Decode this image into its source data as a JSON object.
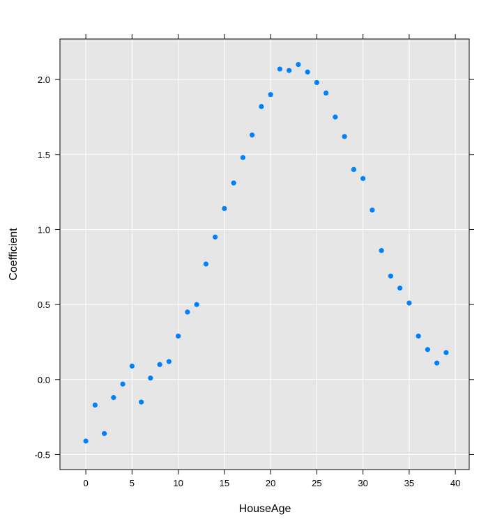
{
  "chart_data": {
    "type": "scatter",
    "xlabel": "HouseAge",
    "ylabel": "Coefficient",
    "xlim": [
      -2.8,
      41.5
    ],
    "ylim": [
      -0.6,
      2.27
    ],
    "x_ticks": [
      0,
      5,
      10,
      15,
      20,
      25,
      30,
      35,
      40
    ],
    "y_ticks": [
      -0.5,
      0.0,
      0.5,
      1.0,
      1.5,
      2.0
    ],
    "x_tick_labels": [
      "0",
      "5",
      "10",
      "15",
      "20",
      "25",
      "30",
      "35",
      "40"
    ],
    "y_tick_labels": [
      "-0.5",
      "0.0",
      "0.5",
      "1.0",
      "1.5",
      "2.0"
    ],
    "grid": true,
    "x": [
      0,
      1,
      2,
      3,
      4,
      5,
      6,
      7,
      8,
      9,
      10,
      11,
      12,
      13,
      14,
      15,
      16,
      17,
      18,
      19,
      20,
      21,
      22,
      23,
      24,
      25,
      26,
      27,
      28,
      29,
      30,
      31,
      32,
      33,
      34,
      35,
      36,
      37,
      38,
      39
    ],
    "y": [
      -0.41,
      -0.17,
      -0.36,
      -0.12,
      -0.03,
      0.09,
      -0.15,
      0.01,
      0.1,
      0.12,
      0.29,
      0.45,
      0.5,
      0.77,
      0.95,
      1.14,
      1.31,
      1.48,
      1.63,
      1.82,
      1.9,
      2.07,
      2.06,
      2.1,
      2.05,
      1.98,
      1.91,
      1.75,
      1.62,
      1.4,
      1.34,
      1.13,
      0.86,
      0.69,
      0.61,
      0.51,
      0.29,
      0.2,
      0.11,
      0.18
    ]
  },
  "colors": {
    "panel_background": "#e6e6e6",
    "grid": "#ffffff",
    "point": "#0080ff",
    "axis": "#000000"
  }
}
